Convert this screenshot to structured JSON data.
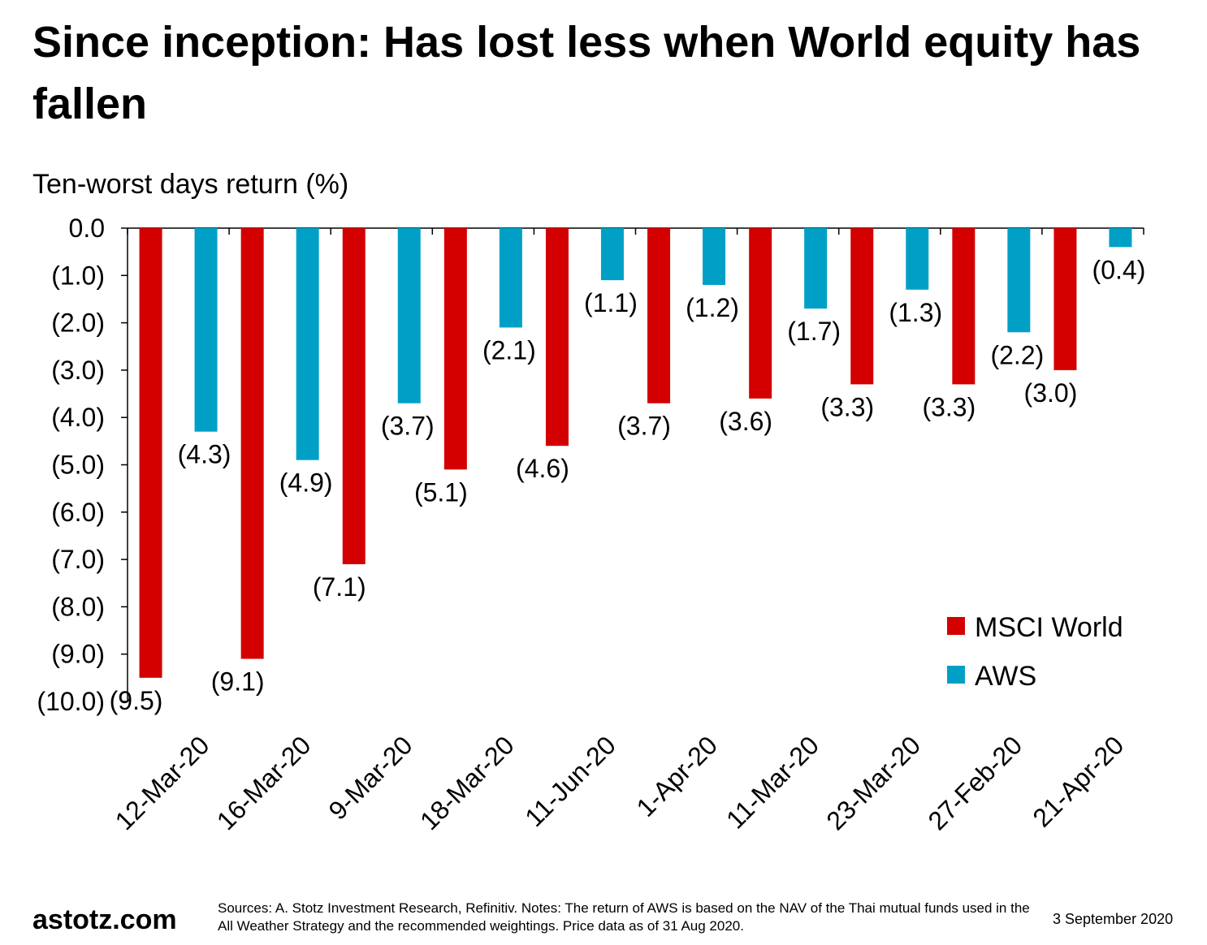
{
  "title": "Since inception: Has lost less when World equity has fallen",
  "colors": {
    "msci": "#d40000",
    "aws": "#00a0c6",
    "axis": "#000000"
  },
  "chart_data": {
    "type": "bar",
    "ylabel": "Ten-worst days return (%)",
    "ylim": [
      -10,
      0
    ],
    "yticks": [
      "0.0",
      "(1.0)",
      "(2.0)",
      "(3.0)",
      "(4.0)",
      "(5.0)",
      "(6.0)",
      "(7.0)",
      "(8.0)",
      "(9.0)",
      "(10.0)"
    ],
    "categories": [
      "12-Mar-20",
      "16-Mar-20",
      "9-Mar-20",
      "18-Mar-20",
      "11-Jun-20",
      "1-Apr-20",
      "11-Mar-20",
      "23-Mar-20",
      "27-Feb-20",
      "21-Apr-20"
    ],
    "series": [
      {
        "name": "MSCI World",
        "color": "#d40000",
        "values": [
          -9.5,
          -9.1,
          -7.1,
          -5.1,
          -4.6,
          -3.7,
          -3.6,
          -3.3,
          -3.3,
          -3.0
        ],
        "labels": [
          "(9.5)",
          "(9.1)",
          "(7.1)",
          "(5.1)",
          "(4.6)",
          "(3.7)",
          "(3.6)",
          "(3.3)",
          "(3.3)",
          "(3.0)"
        ]
      },
      {
        "name": "AWS",
        "color": "#00a0c6",
        "values": [
          -4.3,
          -4.9,
          -3.7,
          -2.1,
          -1.1,
          -1.2,
          -1.7,
          -1.3,
          -2.2,
          -0.4
        ],
        "labels": [
          "(4.3)",
          "(4.9)",
          "(3.7)",
          "(2.1)",
          "(1.1)",
          "(1.2)",
          "(1.7)",
          "(1.3)",
          "(2.2)",
          "(0.4)"
        ]
      }
    ],
    "legend_position": "bottom-right",
    "grid": false
  },
  "footer": {
    "brand": "astotz.com",
    "sources": "Sources: A. Stotz Investment Research, Refinitiv. Notes: The return of AWS is based on the NAV of the Thai mutual funds used in the All Weather Strategy and the recommended weightings. Price data as of 31 Aug 2020.",
    "date": "3 September 2020"
  }
}
